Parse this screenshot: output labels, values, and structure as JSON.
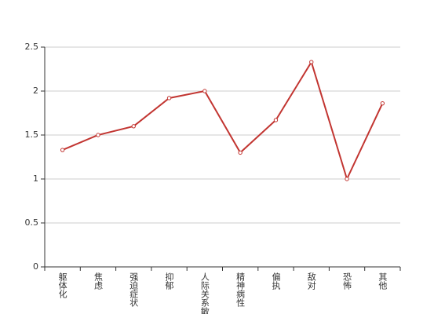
{
  "chart_data": {
    "type": "line",
    "categories": [
      "躯体化",
      "焦虑",
      "强迫症状",
      "抑郁",
      "人际关系敏感",
      "精神病性",
      "偏执",
      "敌对",
      "恐怖",
      "其他"
    ],
    "values": [
      1.33,
      1.5,
      1.6,
      1.92,
      2.0,
      1.3,
      1.67,
      2.33,
      1.0,
      1.86
    ],
    "color": "#c23531",
    "ylim": [
      0,
      2.5
    ],
    "yticks": [
      0,
      0.5,
      1,
      1.5,
      2,
      2.5
    ],
    "grid": true
  }
}
